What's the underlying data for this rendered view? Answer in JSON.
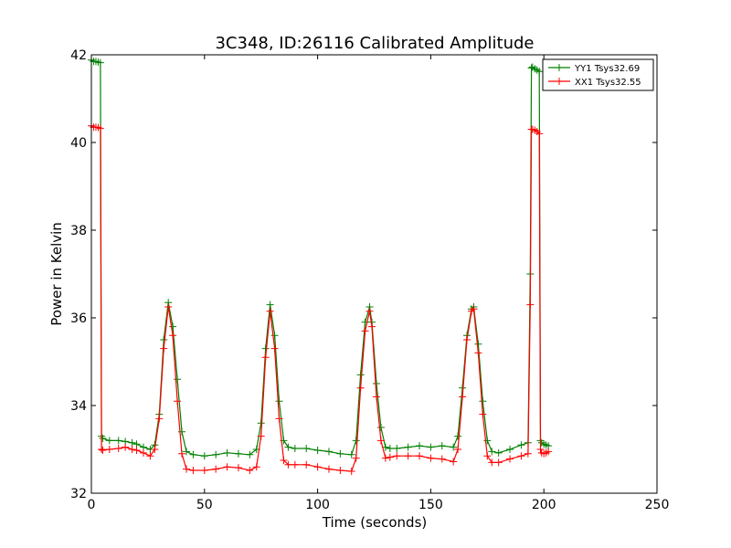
{
  "chart_data": {
    "type": "line",
    "title": "3C348, ID:26116 Calibrated Amplitude",
    "xlabel": "Time (seconds)",
    "ylabel": "Power in Kelvin",
    "xlim": [
      0,
      250
    ],
    "ylim": [
      32,
      42
    ],
    "xticks": [
      0,
      50,
      100,
      150,
      200,
      250
    ],
    "yticks": [
      32,
      34,
      36,
      38,
      40,
      42
    ],
    "xtick_labels": [
      "0",
      "50",
      "100",
      "150",
      "200",
      "250"
    ],
    "ytick_labels": [
      "32",
      "34",
      "36",
      "38",
      "40",
      "42"
    ],
    "grid": false,
    "legend_position": "top-right",
    "marker": "+",
    "series": [
      {
        "name": "YY1 Tsys32.69",
        "color": "#008000",
        "x": [
          0,
          1,
          2,
          3,
          4,
          4.5,
          5,
          8,
          12,
          15,
          18,
          20,
          23,
          26,
          28,
          30,
          32,
          34,
          36,
          38,
          40,
          42,
          45,
          50,
          55,
          60,
          65,
          70,
          73,
          75,
          77,
          79,
          81,
          83,
          85,
          87,
          90,
          95,
          100,
          105,
          110,
          115,
          117,
          119,
          121,
          123,
          124,
          126,
          128,
          130,
          132,
          135,
          140,
          145,
          150,
          155,
          160,
          162,
          164,
          166,
          168,
          169,
          171,
          173,
          175,
          177,
          180,
          185,
          190,
          193,
          194,
          194.5,
          195,
          196,
          197,
          198,
          198.5,
          199,
          200,
          201,
          202
        ],
        "y": [
          41.88,
          41.85,
          41.85,
          41.83,
          41.82,
          33.3,
          33.25,
          33.2,
          33.2,
          33.18,
          33.15,
          33.12,
          33.05,
          33.0,
          33.1,
          33.8,
          35.5,
          36.35,
          35.8,
          34.6,
          33.4,
          32.95,
          32.88,
          32.85,
          32.88,
          32.92,
          32.9,
          32.88,
          33.0,
          33.6,
          35.3,
          36.3,
          35.6,
          34.1,
          33.2,
          33.05,
          33.02,
          33.02,
          32.98,
          32.95,
          32.9,
          32.88,
          33.2,
          34.7,
          35.9,
          36.25,
          35.9,
          34.5,
          33.5,
          33.05,
          33.02,
          33.02,
          33.05,
          33.08,
          33.05,
          33.08,
          33.05,
          33.3,
          34.4,
          35.6,
          36.2,
          36.25,
          35.4,
          34.1,
          33.2,
          32.95,
          32.92,
          33.0,
          33.1,
          33.15,
          37.0,
          41.7,
          41.72,
          41.68,
          41.65,
          41.62,
          33.2,
          33.15,
          33.12,
          33.1,
          33.08
        ]
      },
      {
        "name": "XX1 Tsys32.55",
        "color": "#ff0000",
        "x": [
          0,
          1,
          2,
          3,
          4,
          4.5,
          5,
          8,
          12,
          15,
          18,
          20,
          23,
          26,
          28,
          30,
          32,
          34,
          36,
          38,
          40,
          42,
          45,
          50,
          55,
          60,
          65,
          70,
          73,
          75,
          77,
          79,
          81,
          83,
          85,
          87,
          90,
          95,
          100,
          105,
          110,
          115,
          117,
          119,
          121,
          123,
          124,
          126,
          128,
          130,
          132,
          135,
          140,
          145,
          150,
          155,
          160,
          162,
          164,
          166,
          168,
          169,
          171,
          173,
          175,
          177,
          180,
          185,
          190,
          193,
          194,
          194.5,
          195,
          196,
          197,
          198,
          198.5,
          199,
          200,
          201,
          202
        ],
        "y": [
          40.38,
          40.35,
          40.35,
          40.34,
          40.32,
          33.0,
          32.98,
          33.0,
          33.02,
          33.05,
          33.0,
          32.98,
          32.92,
          32.85,
          33.0,
          33.7,
          35.3,
          36.25,
          35.6,
          34.1,
          32.9,
          32.55,
          32.52,
          32.52,
          32.55,
          32.6,
          32.58,
          32.52,
          32.6,
          33.3,
          35.1,
          36.15,
          35.3,
          33.7,
          32.75,
          32.65,
          32.65,
          32.65,
          32.6,
          32.55,
          32.52,
          32.5,
          32.8,
          34.4,
          35.7,
          36.15,
          35.8,
          34.2,
          33.2,
          32.8,
          32.82,
          32.85,
          32.85,
          32.85,
          32.8,
          32.78,
          32.72,
          33.0,
          34.2,
          35.5,
          36.15,
          36.2,
          35.2,
          33.8,
          32.85,
          32.7,
          32.7,
          32.78,
          32.85,
          32.9,
          36.3,
          40.3,
          40.3,
          40.28,
          40.25,
          40.2,
          33.0,
          32.92,
          32.9,
          32.92,
          32.95
        ]
      }
    ]
  }
}
